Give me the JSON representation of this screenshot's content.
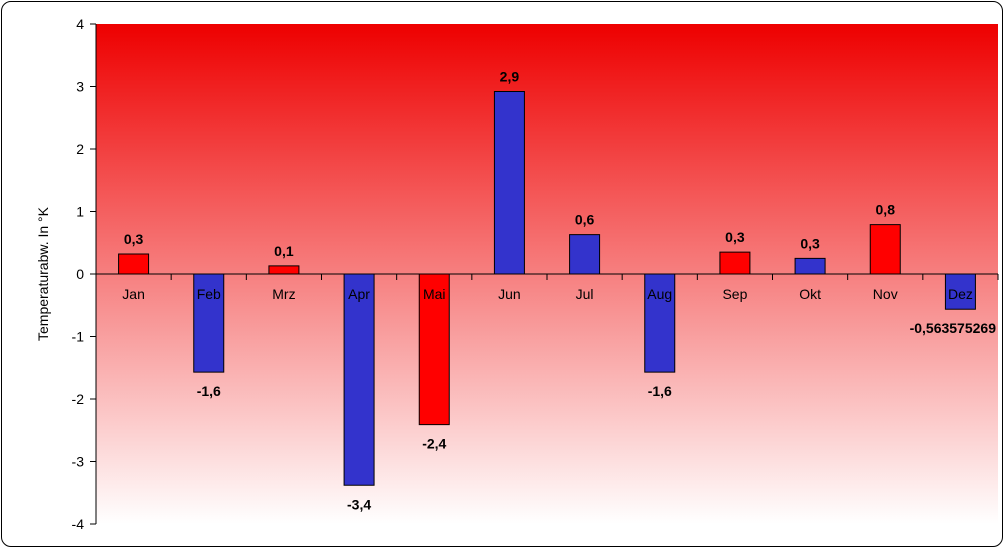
{
  "chart_data": {
    "type": "bar",
    "title": "",
    "xlabel": "",
    "ylabel": "Temperaturabw.  In °K",
    "ylim": [
      -4,
      4
    ],
    "yticks": [
      4,
      3,
      2,
      1,
      0,
      -1,
      -2,
      -3,
      -4
    ],
    "categories": [
      "Jan",
      "Feb",
      "Mrz",
      "Apr",
      "Mai",
      "Jun",
      "Jul",
      "Aug",
      "Sep",
      "Okt",
      "Nov",
      "Dez"
    ],
    "values": [
      0.32,
      -1.57,
      0.13,
      -3.38,
      -2.41,
      2.92,
      0.63,
      -1.57,
      0.35,
      0.25,
      0.79,
      -0.563575269
    ],
    "data_labels": [
      "0,3",
      "-1,6",
      "0,1",
      "-3,4",
      "-2,4",
      "2,9",
      "0,6",
      "-1,6",
      "0,3",
      "0,3",
      "0,8",
      "-0,563575269"
    ],
    "bar_colors": [
      "#ff0000",
      "#3333cc",
      "#ff0000",
      "#3333cc",
      "#ff0000",
      "#3333cc",
      "#3333cc",
      "#3333cc",
      "#ff0000",
      "#3333cc",
      "#ff0000",
      "#3333cc"
    ],
    "background_gradient": [
      "#ee0000",
      "#ffffff"
    ],
    "grid": false,
    "legend": "none"
  }
}
